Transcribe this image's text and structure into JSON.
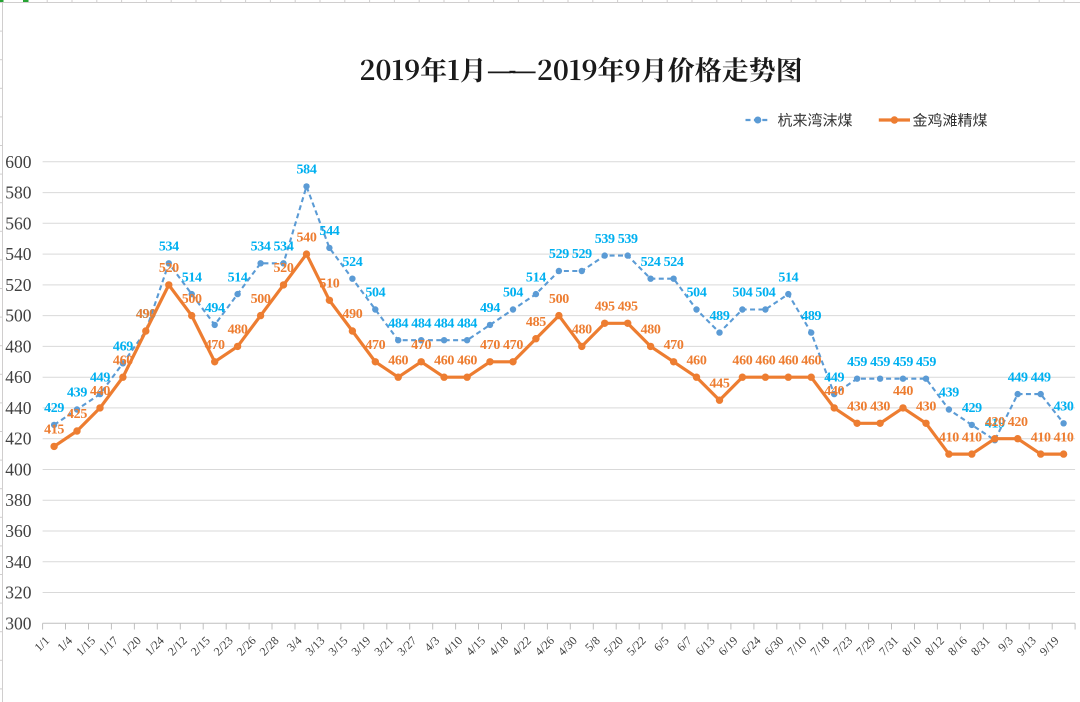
{
  "window": {
    "app": "excel-worksheet",
    "selection_color": "#26A333"
  },
  "title": {
    "text": "2019年1月——2019年9月价格走势图"
  },
  "legend": {
    "items": [
      {
        "label": "杭来湾沫煤",
        "color": "#5B9BD5",
        "label_color": "#00B0F0",
        "line_style": "dashed"
      },
      {
        "label": "金鸡滩精煤",
        "color": "#ED7D31",
        "label_color": "#ED7D31",
        "line_style": "solid"
      }
    ]
  },
  "chart_data": {
    "type": "line",
    "title": "2019年1月——2019年9月价格走势图",
    "categories": [
      "1/1",
      "1/4",
      "1/15",
      "1/17",
      "1/20",
      "1/24",
      "2/12",
      "2/15",
      "2/23",
      "2/26",
      "2/28",
      "3/4",
      "3/13",
      "3/15",
      "3/19",
      "3/21",
      "3/27",
      "4/3",
      "4/10",
      "4/15",
      "4/18",
      "4/22",
      "4/26",
      "4/30",
      "5/8",
      "5/20",
      "5/22",
      "6/5",
      "6/7",
      "6/13",
      "6/19",
      "6/24",
      "6/30",
      "7/10",
      "7/18",
      "7/23",
      "7/29",
      "7/31",
      "8/10",
      "8/12",
      "8/16",
      "8/31",
      "9/3",
      "9/13",
      "9/19"
    ],
    "series": [
      {
        "name": "杭来湾沫煤",
        "values": [
          429,
          439,
          449,
          469,
          490,
          534,
          514,
          494,
          514,
          534,
          534,
          584,
          544,
          524,
          504,
          484,
          484,
          484,
          484,
          494,
          504,
          514,
          529,
          529,
          539,
          539,
          524,
          524,
          504,
          489,
          504,
          504,
          514,
          489,
          449,
          459,
          459,
          459,
          459,
          439,
          429,
          419,
          449,
          449,
          430
        ],
        "color": "#5B9BD5",
        "label_color": "#00B0F0",
        "dashed": true
      },
      {
        "name": "金鸡滩精煤",
        "values": [
          415,
          425,
          440,
          460,
          490,
          520,
          500,
          470,
          480,
          500,
          520,
          540,
          510,
          490,
          470,
          460,
          470,
          460,
          460,
          470,
          470,
          485,
          500,
          480,
          495,
          495,
          480,
          470,
          460,
          445,
          460,
          460,
          460,
          460,
          440,
          430,
          430,
          440,
          430,
          410,
          410,
          420,
          420,
          410,
          410
        ],
        "color": "#ED7D31",
        "label_color": "#ED7D31",
        "dashed": false
      }
    ],
    "ylim": [
      300,
      600
    ],
    "yticks": [
      300,
      320,
      340,
      360,
      380,
      400,
      420,
      440,
      460,
      480,
      500,
      520,
      540,
      560,
      580,
      600
    ],
    "grid": true,
    "legend_position": "top-right",
    "data_labels": "above",
    "colors": {
      "gridline": "#D9D9D9",
      "axis_line": "#BFBFBF",
      "axis_text": "#404040"
    }
  }
}
